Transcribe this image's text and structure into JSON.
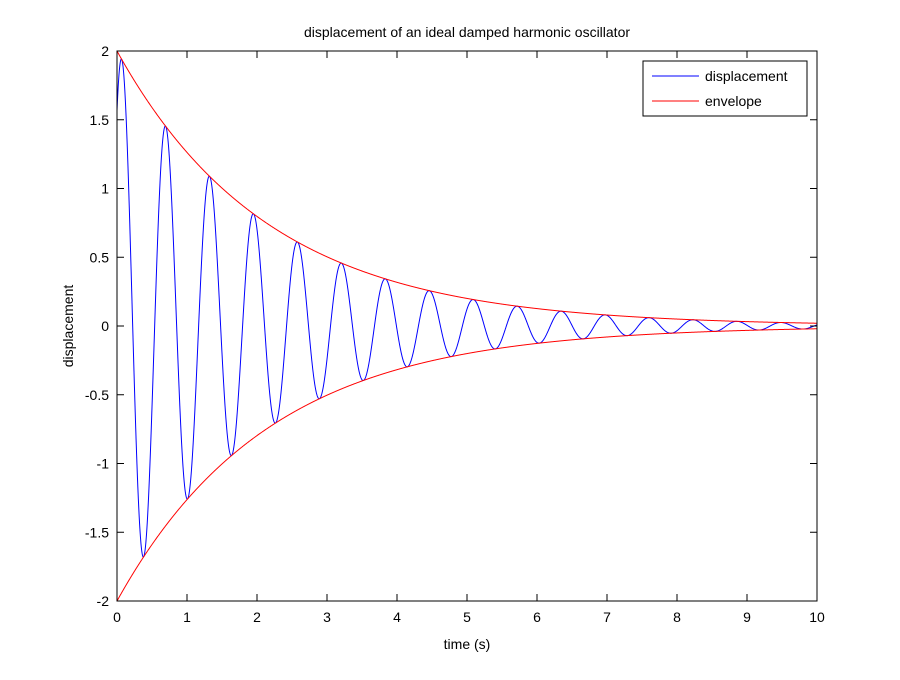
{
  "chart_data": {
    "type": "line",
    "title": "displacement of an ideal damped harmonic oscillator",
    "xlabel": "time (s)",
    "ylabel": "displacement",
    "xlim": [
      0,
      10
    ],
    "ylim": [
      -2,
      2
    ],
    "xticks": [
      "0",
      "1",
      "2",
      "3",
      "4",
      "5",
      "6",
      "7",
      "8",
      "9",
      "10"
    ],
    "yticks": [
      "-2",
      "-1.5",
      "-1",
      "-0.5",
      "0",
      "0.5",
      "1",
      "1.5",
      "2"
    ],
    "grid": false,
    "legend_position": "top-right",
    "model": {
      "amplitude": 2,
      "decay_rate": 0.46,
      "period": 0.628,
      "phase": 0.9
    },
    "series": [
      {
        "name": "displacement",
        "color": "#0000ff",
        "expression": "2*exp(-0.46*t)*sin(2*pi*t/0.628 + 0.9)",
        "peaks": [
          {
            "x": 0.53,
            "y": 1.51
          },
          {
            "x": 1.16,
            "y": 1.1
          },
          {
            "x": 1.79,
            "y": 0.8
          },
          {
            "x": 2.42,
            "y": 0.58
          },
          {
            "x": 3.04,
            "y": 0.43
          },
          {
            "x": 3.67,
            "y": 0.31
          },
          {
            "x": 4.3,
            "y": 0.22
          },
          {
            "x": 4.93,
            "y": 0.16
          }
        ],
        "troughs": [
          {
            "x": 0.22,
            "y": -1.78
          },
          {
            "x": 0.85,
            "y": -1.3
          },
          {
            "x": 1.48,
            "y": -0.95
          },
          {
            "x": 2.11,
            "y": -0.69
          },
          {
            "x": 2.73,
            "y": -0.5
          },
          {
            "x": 3.36,
            "y": -0.37
          },
          {
            "x": 3.99,
            "y": -0.26
          },
          {
            "x": 4.62,
            "y": -0.19
          }
        ]
      },
      {
        "name": "envelope",
        "color": "#ff0000",
        "expression": "±2*exp(-0.46*t)",
        "points": [
          {
            "x": 0,
            "y": 2.0
          },
          {
            "x": 1,
            "y": 1.26
          },
          {
            "x": 2,
            "y": 0.8
          },
          {
            "x": 3,
            "y": 0.5
          },
          {
            "x": 4,
            "y": 0.32
          },
          {
            "x": 5,
            "y": 0.2
          },
          {
            "x": 6,
            "y": 0.13
          },
          {
            "x": 7,
            "y": 0.08
          },
          {
            "x": 8,
            "y": 0.05
          },
          {
            "x": 9,
            "y": 0.03
          },
          {
            "x": 10,
            "y": 0.02
          }
        ]
      }
    ]
  }
}
